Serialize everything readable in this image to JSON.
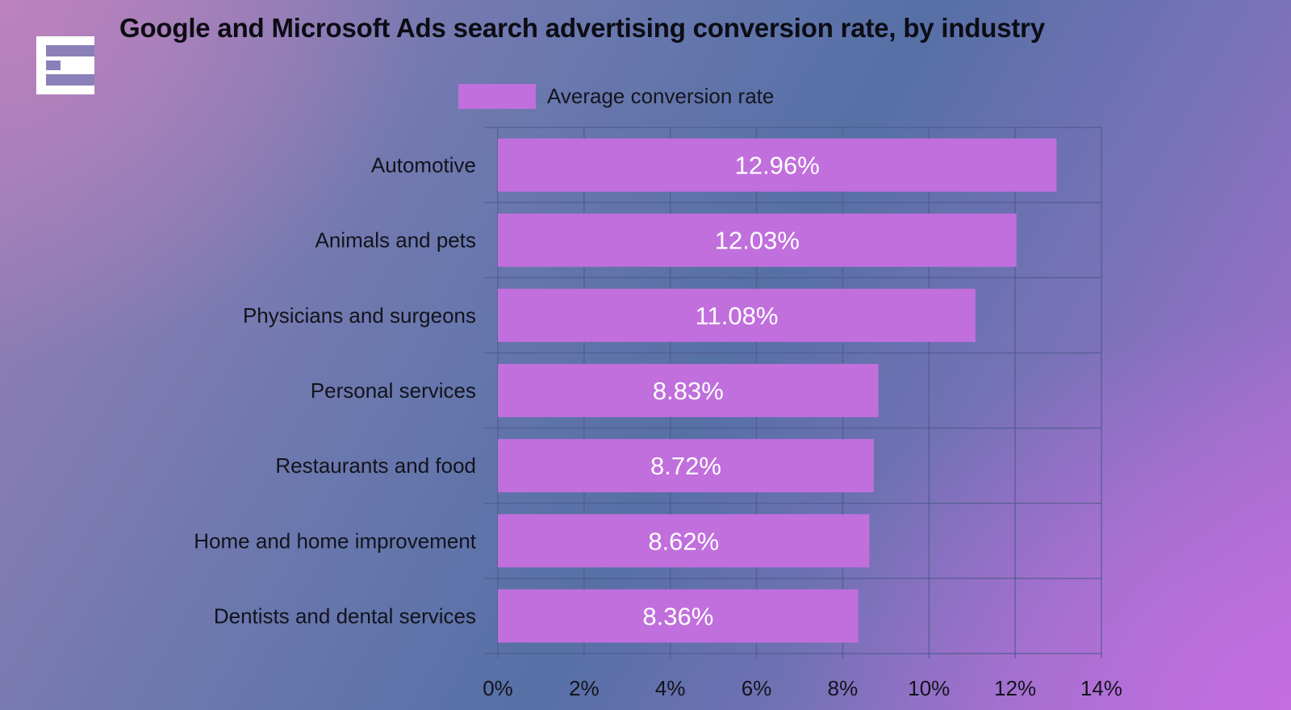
{
  "colors": {
    "bar": "#c06fdc",
    "grid": "#4f5b8c",
    "text": "#13131c",
    "data_label": "#ffffff"
  },
  "logo": {
    "icon": "brand-e-logo-icon"
  },
  "chart_data": {
    "type": "bar",
    "orientation": "horizontal",
    "title": "Google and Microsoft Ads search advertising conversion rate, by industry",
    "legend": {
      "label": "Average conversion rate",
      "position": "top-center"
    },
    "categories": [
      "Automotive",
      "Animals and pets",
      "Physicians and surgeons",
      "Personal services",
      "Restaurants and food",
      "Home and home improvement",
      "Dentists and dental services"
    ],
    "values": [
      12.96,
      12.03,
      11.08,
      8.83,
      8.72,
      8.62,
      8.36
    ],
    "value_labels": [
      "12.96%",
      "12.03%",
      "11.08%",
      "8.83%",
      "8.72%",
      "8.62%",
      "8.36%"
    ],
    "xlim": [
      0,
      14
    ],
    "ticks": [
      0,
      2,
      4,
      6,
      8,
      10,
      12,
      14
    ],
    "tick_labels": [
      "0%",
      "2%",
      "4%",
      "6%",
      "8%",
      "10%",
      "12%",
      "14%"
    ],
    "grid": true,
    "xlabel": "",
    "ylabel": ""
  }
}
